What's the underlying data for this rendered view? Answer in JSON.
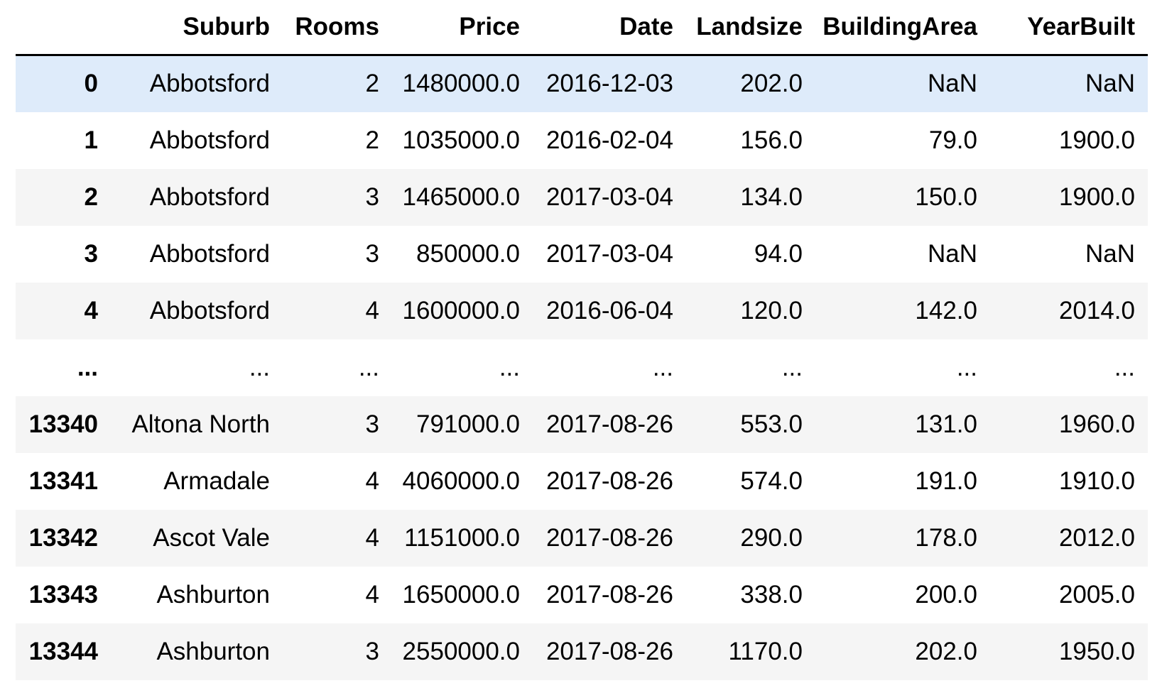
{
  "table": {
    "columns": [
      "",
      "Suburb",
      "Rooms",
      "Price",
      "Date",
      "Landsize",
      "BuildingArea",
      "YearBuilt"
    ],
    "rows": [
      {
        "index": "0",
        "cells": [
          "Abbotsford",
          "2",
          "1480000.0",
          "2016-12-03",
          "202.0",
          "NaN",
          "NaN"
        ]
      },
      {
        "index": "1",
        "cells": [
          "Abbotsford",
          "2",
          "1035000.0",
          "2016-02-04",
          "156.0",
          "79.0",
          "1900.0"
        ]
      },
      {
        "index": "2",
        "cells": [
          "Abbotsford",
          "3",
          "1465000.0",
          "2017-03-04",
          "134.0",
          "150.0",
          "1900.0"
        ]
      },
      {
        "index": "3",
        "cells": [
          "Abbotsford",
          "3",
          "850000.0",
          "2017-03-04",
          "94.0",
          "NaN",
          "NaN"
        ]
      },
      {
        "index": "4",
        "cells": [
          "Abbotsford",
          "4",
          "1600000.0",
          "2016-06-04",
          "120.0",
          "142.0",
          "2014.0"
        ]
      },
      {
        "index": "...",
        "cells": [
          "...",
          "...",
          "...",
          "...",
          "...",
          "...",
          "..."
        ]
      },
      {
        "index": "13340",
        "cells": [
          "Altona North",
          "3",
          "791000.0",
          "2017-08-26",
          "553.0",
          "131.0",
          "1960.0"
        ]
      },
      {
        "index": "13341",
        "cells": [
          "Armadale",
          "4",
          "4060000.0",
          "2017-08-26",
          "574.0",
          "191.0",
          "1910.0"
        ]
      },
      {
        "index": "13342",
        "cells": [
          "Ascot Vale",
          "4",
          "1151000.0",
          "2017-08-26",
          "290.0",
          "178.0",
          "2012.0"
        ]
      },
      {
        "index": "13343",
        "cells": [
          "Ashburton",
          "4",
          "1650000.0",
          "2017-08-26",
          "338.0",
          "200.0",
          "2005.0"
        ]
      },
      {
        "index": "13344",
        "cells": [
          "Ashburton",
          "3",
          "2550000.0",
          "2017-08-26",
          "1170.0",
          "202.0",
          "1950.0"
        ]
      }
    ]
  },
  "colors": {
    "highlight_row": "#deebfa",
    "stripe_row": "#f5f5f5",
    "header_rule": "#000000"
  }
}
